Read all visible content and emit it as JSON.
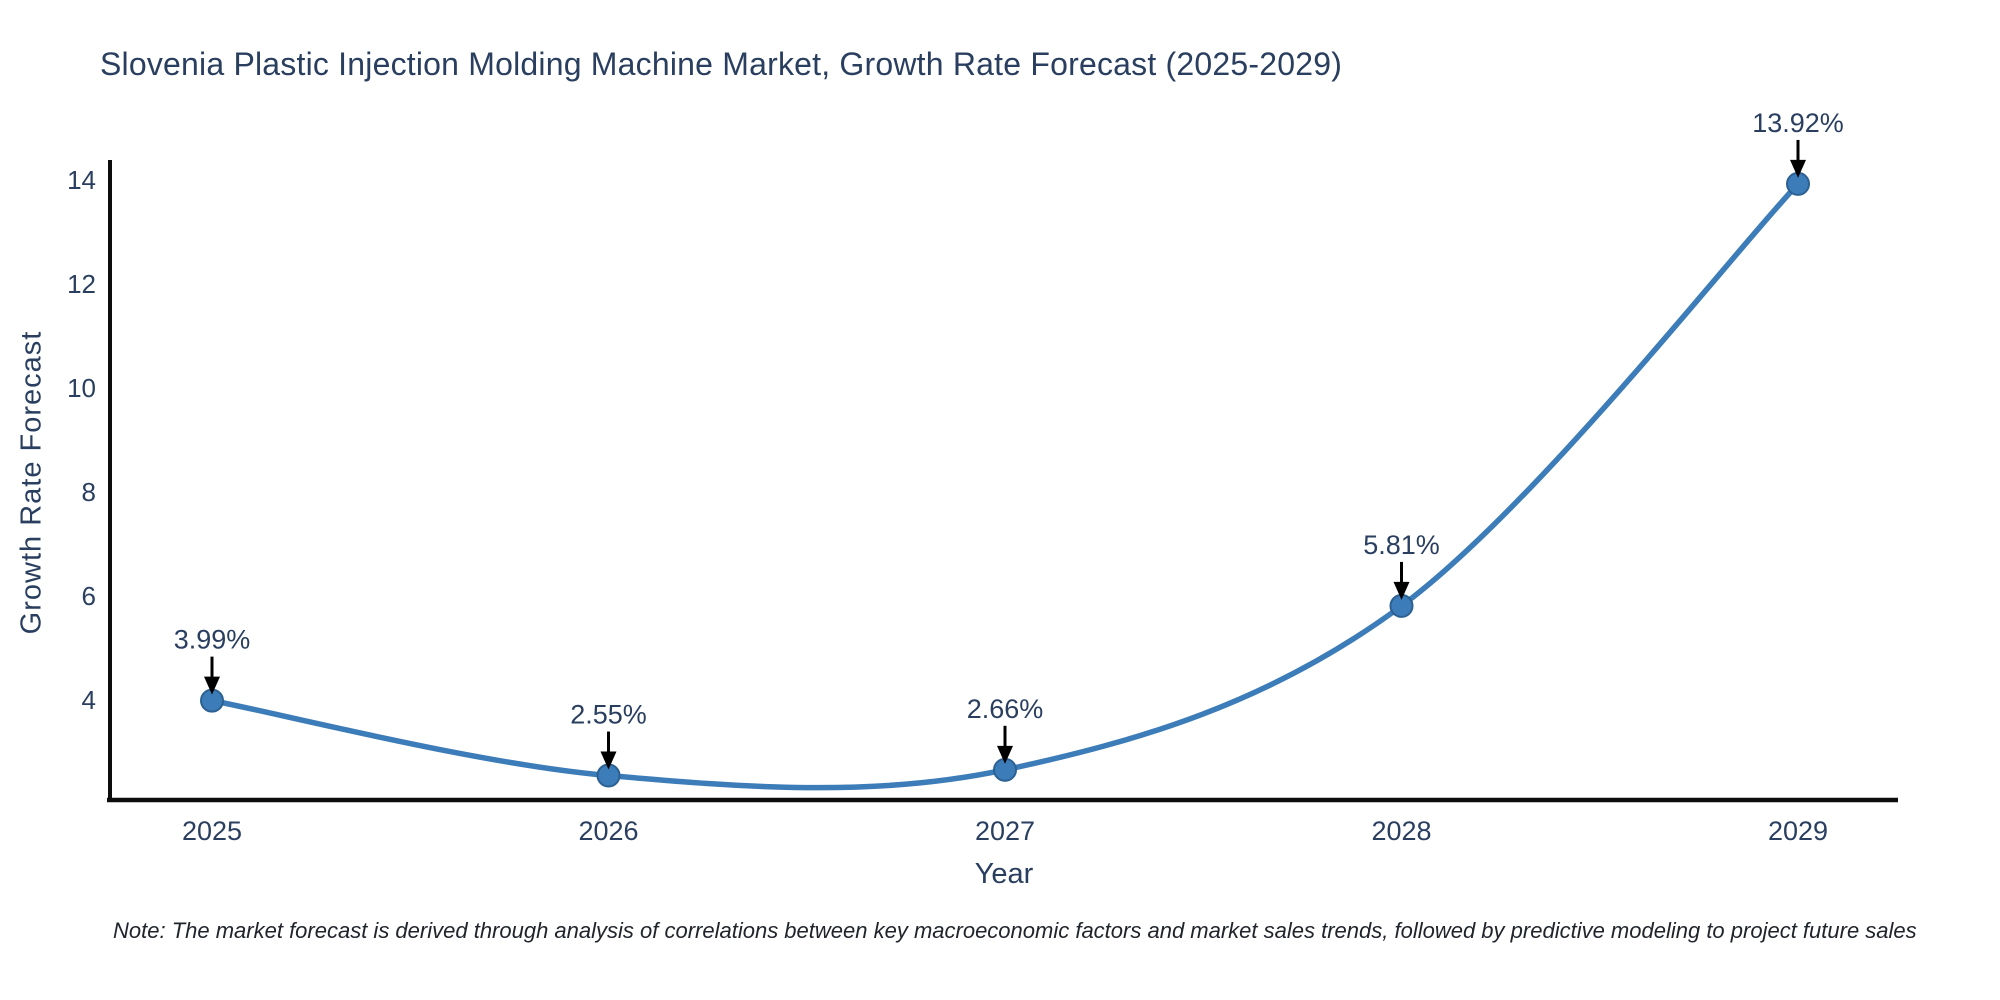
{
  "page": {
    "background": "#ffffff"
  },
  "chart_data": {
    "type": "line",
    "title": "Slovenia Plastic Injection Molding Machine Market, Growth Rate Forecast (2025-2029)",
    "xlabel": "Year",
    "ylabel": "Growth Rate Forecast",
    "x": [
      2025,
      2026,
      2027,
      2028,
      2029
    ],
    "series": [
      {
        "name": "Growth Rate Forecast",
        "values": [
          3.99,
          2.55,
          2.66,
          5.81,
          13.92
        ]
      }
    ],
    "point_labels": [
      "3.99%",
      "2.55%",
      "2.66%",
      "5.81%",
      "13.92%"
    ],
    "x_tick_labels": [
      "2025",
      "2026",
      "2027",
      "2028",
      "2029"
    ],
    "y_ticks": [
      4,
      6,
      8,
      10,
      12,
      14
    ],
    "ylim": [
      2.08,
      14.38
    ],
    "grid": false,
    "legend": "none",
    "colors": {
      "line": "#3c7cb8",
      "marker_fill": "#3c7cb8",
      "marker_edge": "#2c6192",
      "axis": "#0d0d0d",
      "tick_text": "#2a3f5f",
      "annotation_text": "#2a3f5f",
      "annotation_arrow": "#000000"
    }
  },
  "footnote": "Note: The market forecast is derived through analysis of correlations between key macroeconomic factors and market sales trends, followed by predictive modeling to project future sales"
}
